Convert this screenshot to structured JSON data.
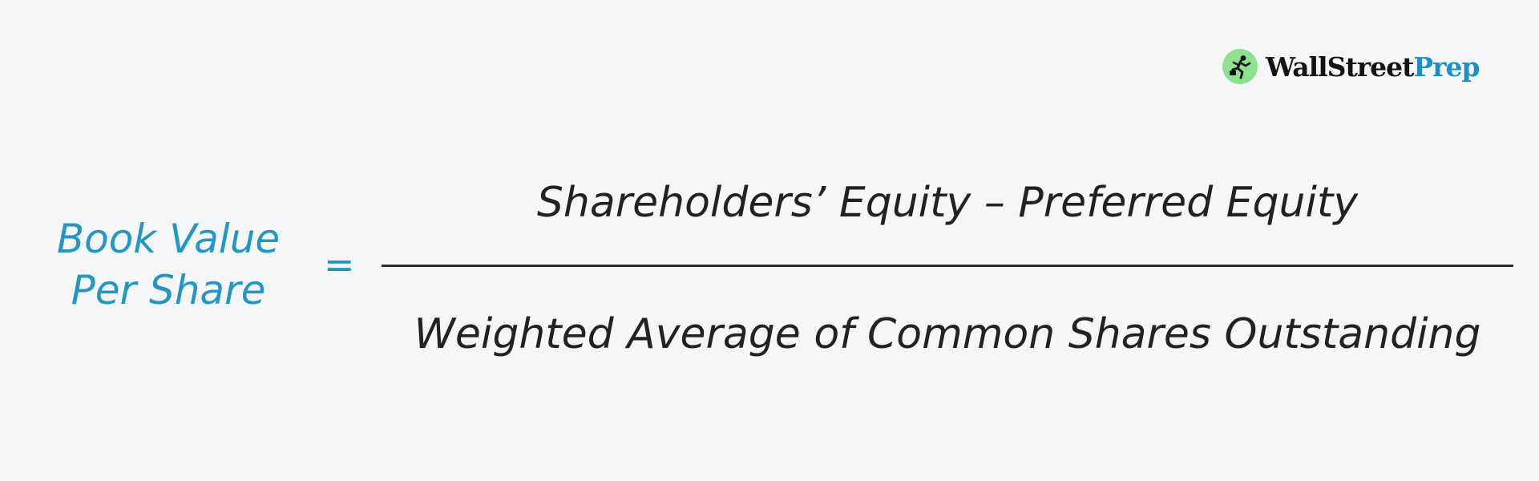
{
  "logo": {
    "icon": "running-figure-icon",
    "word_wall": "Wall",
    "word_street": "Street",
    "word_prep": "Prep",
    "colors": {
      "icon_bg": "#8fe08f",
      "dark": "#141414",
      "accent": "#1e8fc2"
    }
  },
  "formula": {
    "lhs_line1": "Book Value",
    "lhs_line2": "Per Share",
    "equals": "=",
    "numerator": "Shareholders’ Equity – Preferred Equity",
    "denominator": "Weighted Average of Common Shares Outstanding",
    "colors": {
      "lhs": "#2596c2",
      "text": "#222222",
      "line": "#2b2b2b",
      "background": "#f5f6f8"
    }
  }
}
